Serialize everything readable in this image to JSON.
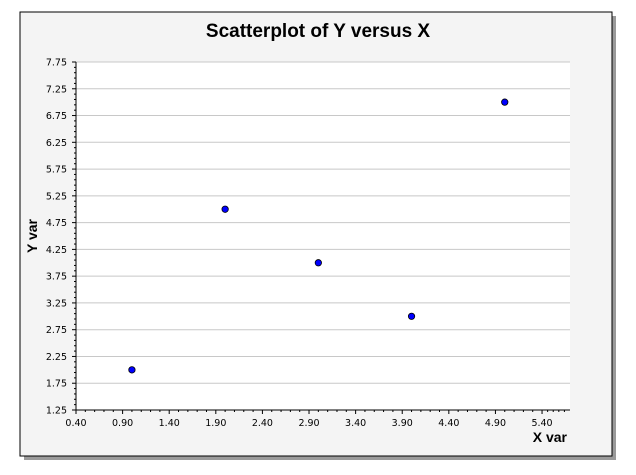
{
  "chart_data": {
    "type": "scatter",
    "title": "Scatterplot of Y versus X",
    "xlabel": "X var",
    "ylabel": "Y var",
    "xlim": [
      0.4,
      5.7
    ],
    "ylim": [
      1.25,
      7.75
    ],
    "xticks": [
      "0.40",
      "0.90",
      "1.40",
      "1.90",
      "2.40",
      "2.90",
      "3.40",
      "3.90",
      "4.40",
      "4.90",
      "5.40"
    ],
    "yticks": [
      "1.25",
      "1.75",
      "2.25",
      "2.75",
      "3.25",
      "3.75",
      "4.25",
      "4.75",
      "5.25",
      "5.75",
      "6.25",
      "6.75",
      "7.25",
      "7.75"
    ],
    "grid": true,
    "series": [
      {
        "points": [
          {
            "x": 1.0,
            "y": 2.0
          },
          {
            "x": 2.0,
            "y": 5.0
          },
          {
            "x": 3.0,
            "y": 4.0
          },
          {
            "x": 4.0,
            "y": 3.0
          },
          {
            "x": 5.0,
            "y": 7.0
          }
        ]
      }
    ],
    "colors": {
      "marker_fill": "#0000ff",
      "marker_stroke": "#000000",
      "grid": "#c8c8c8",
      "panel_background": "#ffffff",
      "outer_background": "#f4f4f4",
      "border": "#000000"
    }
  }
}
